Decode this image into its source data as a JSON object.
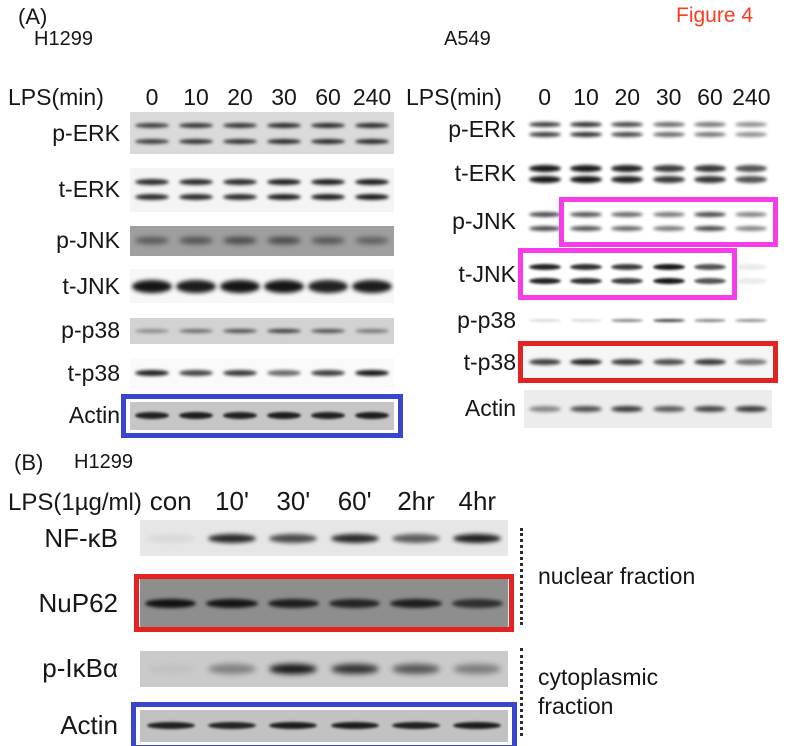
{
  "figure_label": "Figure 4",
  "colors": {
    "blue": "#3b45cc",
    "red": "#e32222",
    "magenta": "#f63ce8",
    "figure_label": "#fb3a1e"
  },
  "panel_a": {
    "label": "(A)",
    "h1299": {
      "cell_line": "H1299",
      "treatment_label": "LPS(min)",
      "lanes": [
        "0",
        "10",
        "20",
        "30",
        "60",
        "240"
      ],
      "rows": [
        {
          "protein": "p-ERK",
          "bg": "#dadada",
          "bands": "double",
          "band_h": 5,
          "gap": 11,
          "strip_h": 42,
          "blur": 1.5,
          "intensities": [
            0.75,
            0.8,
            0.8,
            0.85,
            0.85,
            0.85
          ]
        },
        {
          "protein": "t-ERK",
          "bg": "#f4f4f4",
          "bands": "double",
          "band_h": 6,
          "gap": 9,
          "strip_h": 44,
          "blur": 1.5,
          "intensities": [
            0.85,
            0.85,
            0.85,
            0.9,
            0.9,
            0.92
          ]
        },
        {
          "protein": "p-JNK",
          "bg": "#9f9f9f",
          "bands": "single",
          "band_h": 7,
          "strip_h": 30,
          "blur": 2.6,
          "intensities": [
            0.5,
            0.55,
            0.62,
            0.62,
            0.52,
            0.45
          ]
        },
        {
          "protein": "t-JNK",
          "bg": "#f7f7f7",
          "bands": "single",
          "band_h": 13,
          "band_w": 90,
          "strip_h": 34,
          "blur": 2.0,
          "intensities": [
            0.95,
            0.92,
            0.95,
            0.95,
            0.9,
            0.92
          ]
        },
        {
          "protein": "p-p38",
          "bg": "#d2d2d2",
          "bands": "single",
          "band_h": 4,
          "strip_h": 26,
          "blur": 1.6,
          "intensities": [
            0.35,
            0.5,
            0.65,
            0.75,
            0.65,
            0.45
          ]
        },
        {
          "protein": "t-p38",
          "bg": "#fafafa",
          "bands": "single",
          "band_h": 6,
          "strip_h": 30,
          "blur": 1.6,
          "intensities": [
            0.9,
            0.75,
            0.8,
            0.6,
            0.78,
            0.95
          ]
        },
        {
          "protein": "Actin",
          "bg": "#c6c6c6",
          "bands": "single",
          "band_h": 7,
          "strip_h": 28,
          "blur": 1.4,
          "intensities": [
            0.88,
            0.9,
            0.88,
            0.9,
            0.88,
            0.9
          ],
          "box": {
            "color": "blue",
            "style": "padded"
          }
        }
      ]
    },
    "a549": {
      "cell_line": "A549",
      "treatment_label": "LPS(min)",
      "lanes": [
        "0",
        "10",
        "20",
        "30",
        "60",
        "240"
      ],
      "rows": [
        {
          "protein": "p-ERK",
          "bg": "#ffffff",
          "bands": "double",
          "band_h": 5,
          "gap": 5,
          "strip_h": 34,
          "blur": 1.7,
          "intensities": [
            0.8,
            0.85,
            0.75,
            0.6,
            0.55,
            0.45
          ]
        },
        {
          "protein": "t-ERK",
          "bg": "#ffffff",
          "bands": "double",
          "band_h": 7,
          "gap": 4,
          "strip_h": 32,
          "blur": 1.6,
          "intensities": [
            0.95,
            0.95,
            0.9,
            0.8,
            0.82,
            0.7
          ]
        },
        {
          "protein": "p-JNK",
          "bg": "#ffffff",
          "bands": "double",
          "band_h": 5,
          "gap": 9,
          "strip_h": 40,
          "blur": 1.6,
          "intensities": [
            0.75,
            0.7,
            0.62,
            0.55,
            0.75,
            0.5
          ],
          "box": {
            "color": "magenta",
            "lanes": [
              2,
              6
            ]
          }
        },
        {
          "protein": "t-JNK",
          "bg": "#ffffff",
          "bands": "double",
          "band_h": 6,
          "gap": 8,
          "strip_h": 42,
          "blur": 1.4,
          "intensities": [
            0.9,
            0.85,
            0.8,
            0.95,
            0.7,
            0.08
          ],
          "box": {
            "color": "magenta",
            "lanes": [
              1,
              5
            ]
          }
        },
        {
          "protein": "p-p38",
          "bg": "#ffffff",
          "bands": "single",
          "band_h": 3,
          "strip_h": 20,
          "blur": 1.2,
          "intensities": [
            0.15,
            0.15,
            0.5,
            0.78,
            0.5,
            0.45
          ]
        },
        {
          "protein": "t-p38",
          "bg": "#f6f6f6",
          "bands": "single",
          "band_h": 6,
          "strip_h": 32,
          "blur": 1.5,
          "intensities": [
            0.78,
            0.9,
            0.8,
            0.72,
            0.8,
            0.55
          ],
          "box": {
            "color": "red"
          }
        },
        {
          "protein": "Actin",
          "bg": "#ececec",
          "bands": "single",
          "band_h": 6,
          "strip_h": 38,
          "blur": 1.9,
          "intensities": [
            0.45,
            0.7,
            0.8,
            0.65,
            0.75,
            0.8
          ]
        }
      ]
    }
  },
  "panel_b": {
    "label": "(B)",
    "cell_line": "H1299",
    "treatment_label": "LPS(1µg/ml)",
    "lanes": [
      "con",
      "10'",
      "30'",
      "60'",
      "2hr",
      "4hr"
    ],
    "rows": [
      {
        "protein": "NF-κB",
        "bg": "#e6e6e6",
        "bands": "single",
        "band_h": 9,
        "strip_h": 36,
        "blur": 2.2,
        "intensities": [
          0.05,
          0.85,
          0.7,
          0.85,
          0.62,
          0.9
        ]
      },
      {
        "protein": "NuP62",
        "bg": "#8e8e8e",
        "bands": "single",
        "band_h": 9,
        "band_w": 84,
        "strip_h": 48,
        "blur": 1.8,
        "intensities": [
          0.95,
          0.92,
          0.85,
          0.8,
          0.85,
          0.72
        ],
        "box": {
          "color": "red"
        }
      },
      {
        "protein": "p-IκBα",
        "bg": "#cacaca",
        "bands": "single",
        "band_h": 10,
        "strip_h": 36,
        "blur": 3.0,
        "intensities": [
          0.04,
          0.38,
          0.95,
          0.8,
          0.6,
          0.4
        ]
      },
      {
        "protein": "Actin",
        "bg": "#c2c2c2",
        "bands": "single",
        "band_h": 7,
        "strip_h": 32,
        "blur": 1.4,
        "intensities": [
          0.88,
          0.86,
          0.9,
          0.9,
          0.88,
          0.9
        ],
        "box": {
          "color": "blue",
          "style": "padded"
        }
      }
    ],
    "fractions": [
      {
        "label": "nuclear fraction"
      },
      {
        "label": "cytoplasmic fraction"
      }
    ]
  }
}
